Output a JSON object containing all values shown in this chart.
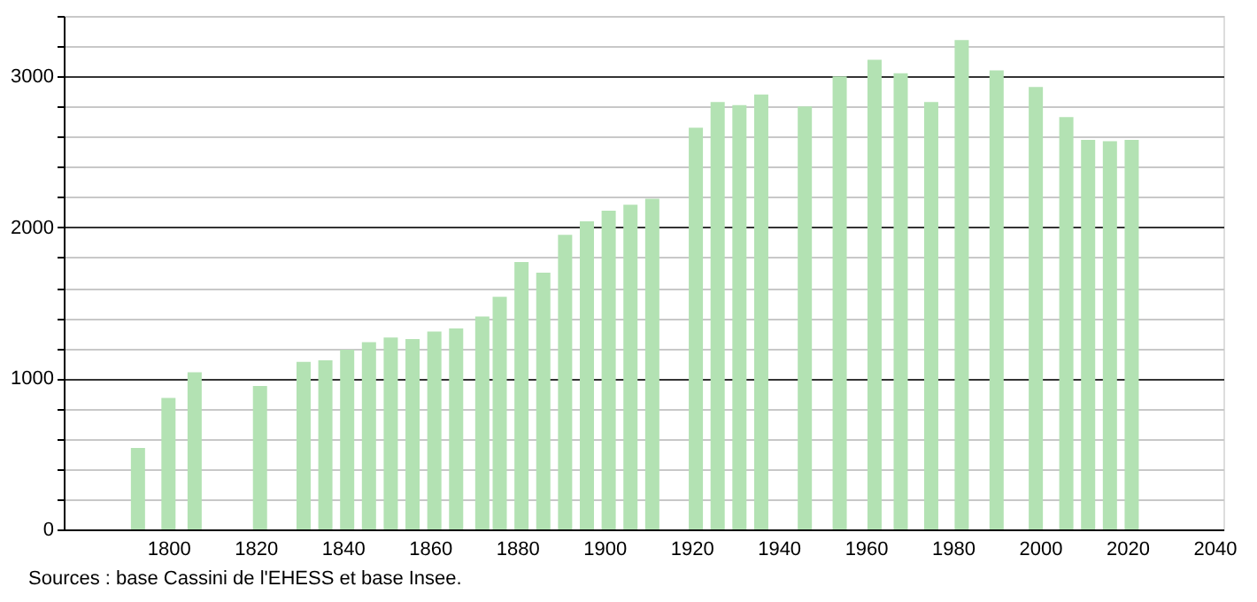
{
  "chart_data": {
    "type": "bar",
    "x": [
      1793,
      1800,
      1806,
      1821,
      1831,
      1836,
      1841,
      1846,
      1851,
      1856,
      1861,
      1866,
      1872,
      1876,
      1881,
      1886,
      1891,
      1896,
      1901,
      1906,
      1911,
      1921,
      1926,
      1931,
      1936,
      1946,
      1954,
      1962,
      1968,
      1975,
      1982,
      1990,
      1999,
      2006,
      2011,
      2016,
      2021
    ],
    "values": [
      540,
      870,
      1040,
      950,
      1110,
      1120,
      1190,
      1240,
      1270,
      1260,
      1310,
      1330,
      1410,
      1540,
      1770,
      1700,
      1950,
      2040,
      2110,
      2150,
      2190,
      2660,
      2830,
      2810,
      2880,
      2800,
      3000,
      3110,
      3020,
      2830,
      3240,
      3040,
      2930,
      2730,
      2580,
      2570,
      2580
    ],
    "color": "#b3e2b3",
    "xlim": [
      1778,
      2040
    ],
    "xticks": [
      1800,
      1820,
      1840,
      1860,
      1880,
      1900,
      1920,
      1940,
      1960,
      1980,
      2000,
      2020,
      2040
    ],
    "ylim": [
      0,
      3400
    ],
    "yticks": [
      0,
      {
        "value": 200,
        "label": null
      },
      {
        "value": 400,
        "label": null
      },
      {
        "value": 600,
        "label": null
      },
      {
        "value": 800,
        "label": null
      },
      1000,
      {
        "value": 1200,
        "label": null
      },
      {
        "value": 1400,
        "label": null
      },
      {
        "value": 1600,
        "label": null
      },
      {
        "value": 1800,
        "label": null
      },
      2000,
      {
        "value": 2200,
        "label": null
      },
      {
        "value": 2400,
        "label": null
      },
      {
        "value": 2600,
        "label": null
      },
      {
        "value": 2800,
        "label": null
      },
      3000,
      {
        "value": 3200,
        "label": null
      },
      {
        "value": 3400,
        "label": null
      }
    ],
    "grid": "y",
    "annotations": [
      "Sources : base Cassini de l'EHESS et base Insee."
    ]
  }
}
